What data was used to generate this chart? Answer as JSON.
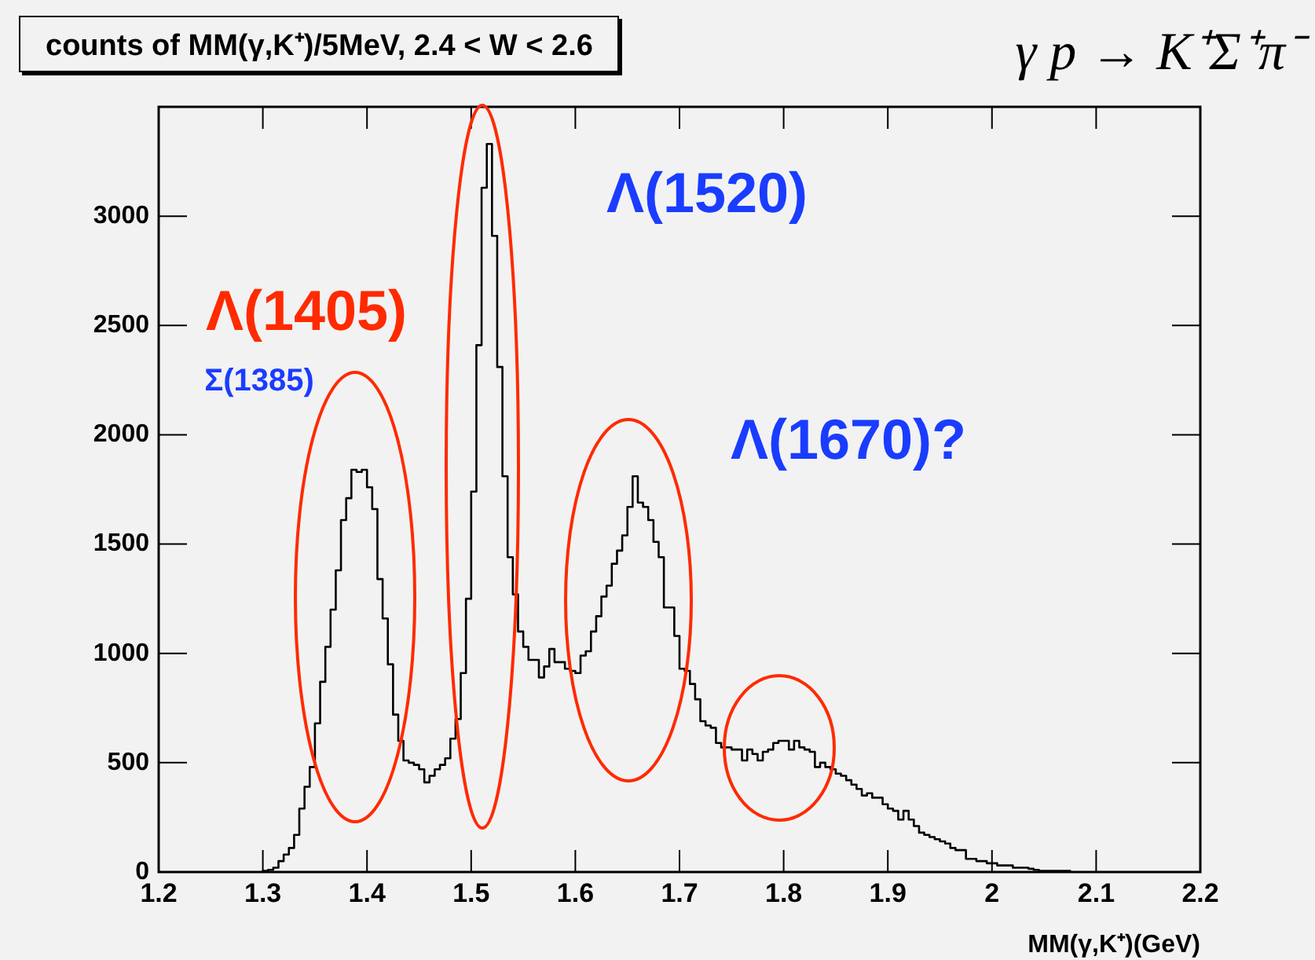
{
  "chart_data": {
    "type": "histogram",
    "title": "counts of MM(γ,K⁺)/5MeV, 2.4 < W < 2.6",
    "subtitle": "γ p → K⁺Σ⁺π⁻",
    "xlabel": "MM(γ,K⁺)(GeV)",
    "bins": [
      1.3,
      1.305,
      1.31,
      1.315,
      1.32,
      1.325,
      1.33,
      1.335,
      1.34,
      1.345,
      1.35,
      1.355,
      1.36,
      1.365,
      1.37,
      1.375,
      1.38,
      1.385,
      1.39,
      1.395,
      1.4,
      1.405,
      1.41,
      1.415,
      1.42,
      1.425,
      1.43,
      1.435,
      1.44,
      1.445,
      1.45,
      1.455,
      1.46,
      1.465,
      1.47,
      1.475,
      1.48,
      1.485,
      1.49,
      1.495,
      1.5,
      1.505,
      1.51,
      1.515,
      1.52,
      1.525,
      1.53,
      1.535,
      1.54,
      1.545,
      1.55,
      1.555,
      1.56,
      1.565,
      1.57,
      1.575,
      1.58,
      1.585,
      1.59,
      1.595,
      1.6,
      1.605,
      1.61,
      1.615,
      1.62,
      1.625,
      1.63,
      1.635,
      1.64,
      1.645,
      1.65,
      1.655,
      1.66,
      1.665,
      1.67,
      1.675,
      1.68,
      1.685,
      1.69,
      1.695,
      1.7,
      1.705,
      1.71,
      1.715,
      1.72,
      1.725,
      1.73,
      1.735,
      1.74,
      1.745,
      1.75,
      1.755,
      1.76,
      1.765,
      1.77,
      1.775,
      1.78,
      1.785,
      1.79,
      1.795,
      1.8,
      1.805,
      1.81,
      1.815,
      1.82,
      1.825,
      1.83,
      1.835,
      1.84,
      1.845,
      1.85,
      1.855,
      1.86,
      1.865,
      1.87,
      1.875,
      1.88,
      1.885,
      1.89,
      1.895,
      1.9,
      1.905,
      1.91,
      1.915,
      1.92,
      1.925,
      1.93,
      1.935,
      1.94,
      1.945,
      1.95,
      1.955,
      1.96,
      1.965,
      1.97,
      1.975,
      1.98,
      1.985,
      1.99,
      1.995,
      2.0,
      2.005,
      2.01,
      2.015,
      2.02,
      2.025,
      2.03,
      2.035,
      2.04,
      2.045,
      2.05,
      2.055,
      2.06,
      2.065,
      2.07,
      2.075
    ],
    "values": [
      5,
      10,
      20,
      50,
      80,
      110,
      170,
      290,
      390,
      480,
      680,
      870,
      1030,
      1200,
      1380,
      1610,
      1710,
      1840,
      1830,
      1840,
      1760,
      1660,
      1340,
      1160,
      950,
      720,
      600,
      510,
      500,
      490,
      470,
      410,
      440,
      470,
      490,
      520,
      610,
      700,
      910,
      1250,
      1740,
      2410,
      3130,
      3330,
      2910,
      2310,
      1810,
      1440,
      1270,
      1100,
      1030,
      970,
      970,
      890,
      940,
      1020,
      960,
      960,
      930,
      920,
      910,
      990,
      1010,
      1100,
      1170,
      1260,
      1310,
      1410,
      1470,
      1540,
      1670,
      1810,
      1690,
      1670,
      1610,
      1510,
      1440,
      1210,
      1210,
      1080,
      930,
      920,
      860,
      790,
      690,
      670,
      660,
      590,
      570,
      570,
      560,
      560,
      510,
      560,
      540,
      510,
      550,
      560,
      590,
      600,
      600,
      560,
      600,
      570,
      560,
      550,
      480,
      500,
      480,
      470,
      450,
      440,
      420,
      400,
      380,
      350,
      360,
      340,
      340,
      310,
      290,
      280,
      240,
      280,
      240,
      210,
      180,
      170,
      160,
      150,
      140,
      130,
      110,
      100,
      100,
      60,
      60,
      50,
      50,
      40,
      40,
      30,
      30,
      30,
      20,
      20,
      20,
      15,
      10,
      5,
      5,
      5,
      5,
      5,
      5
    ],
    "color": "#000000",
    "xlim": [
      1.2,
      2.2
    ],
    "xticks": [
      1.2,
      1.3,
      1.4,
      1.5,
      1.6,
      1.7,
      1.8,
      1.9,
      2,
      2.1,
      2.2
    ],
    "ylim": [
      0,
      3500
    ],
    "yticks": [
      0,
      500,
      1000,
      1500,
      2000,
      2500,
      3000
    ],
    "grid": false,
    "legend": false,
    "annotations": [
      "Λ(1405)",
      "Σ(1385)",
      "Λ(1520)",
      "Λ(1670)?"
    ]
  }
}
